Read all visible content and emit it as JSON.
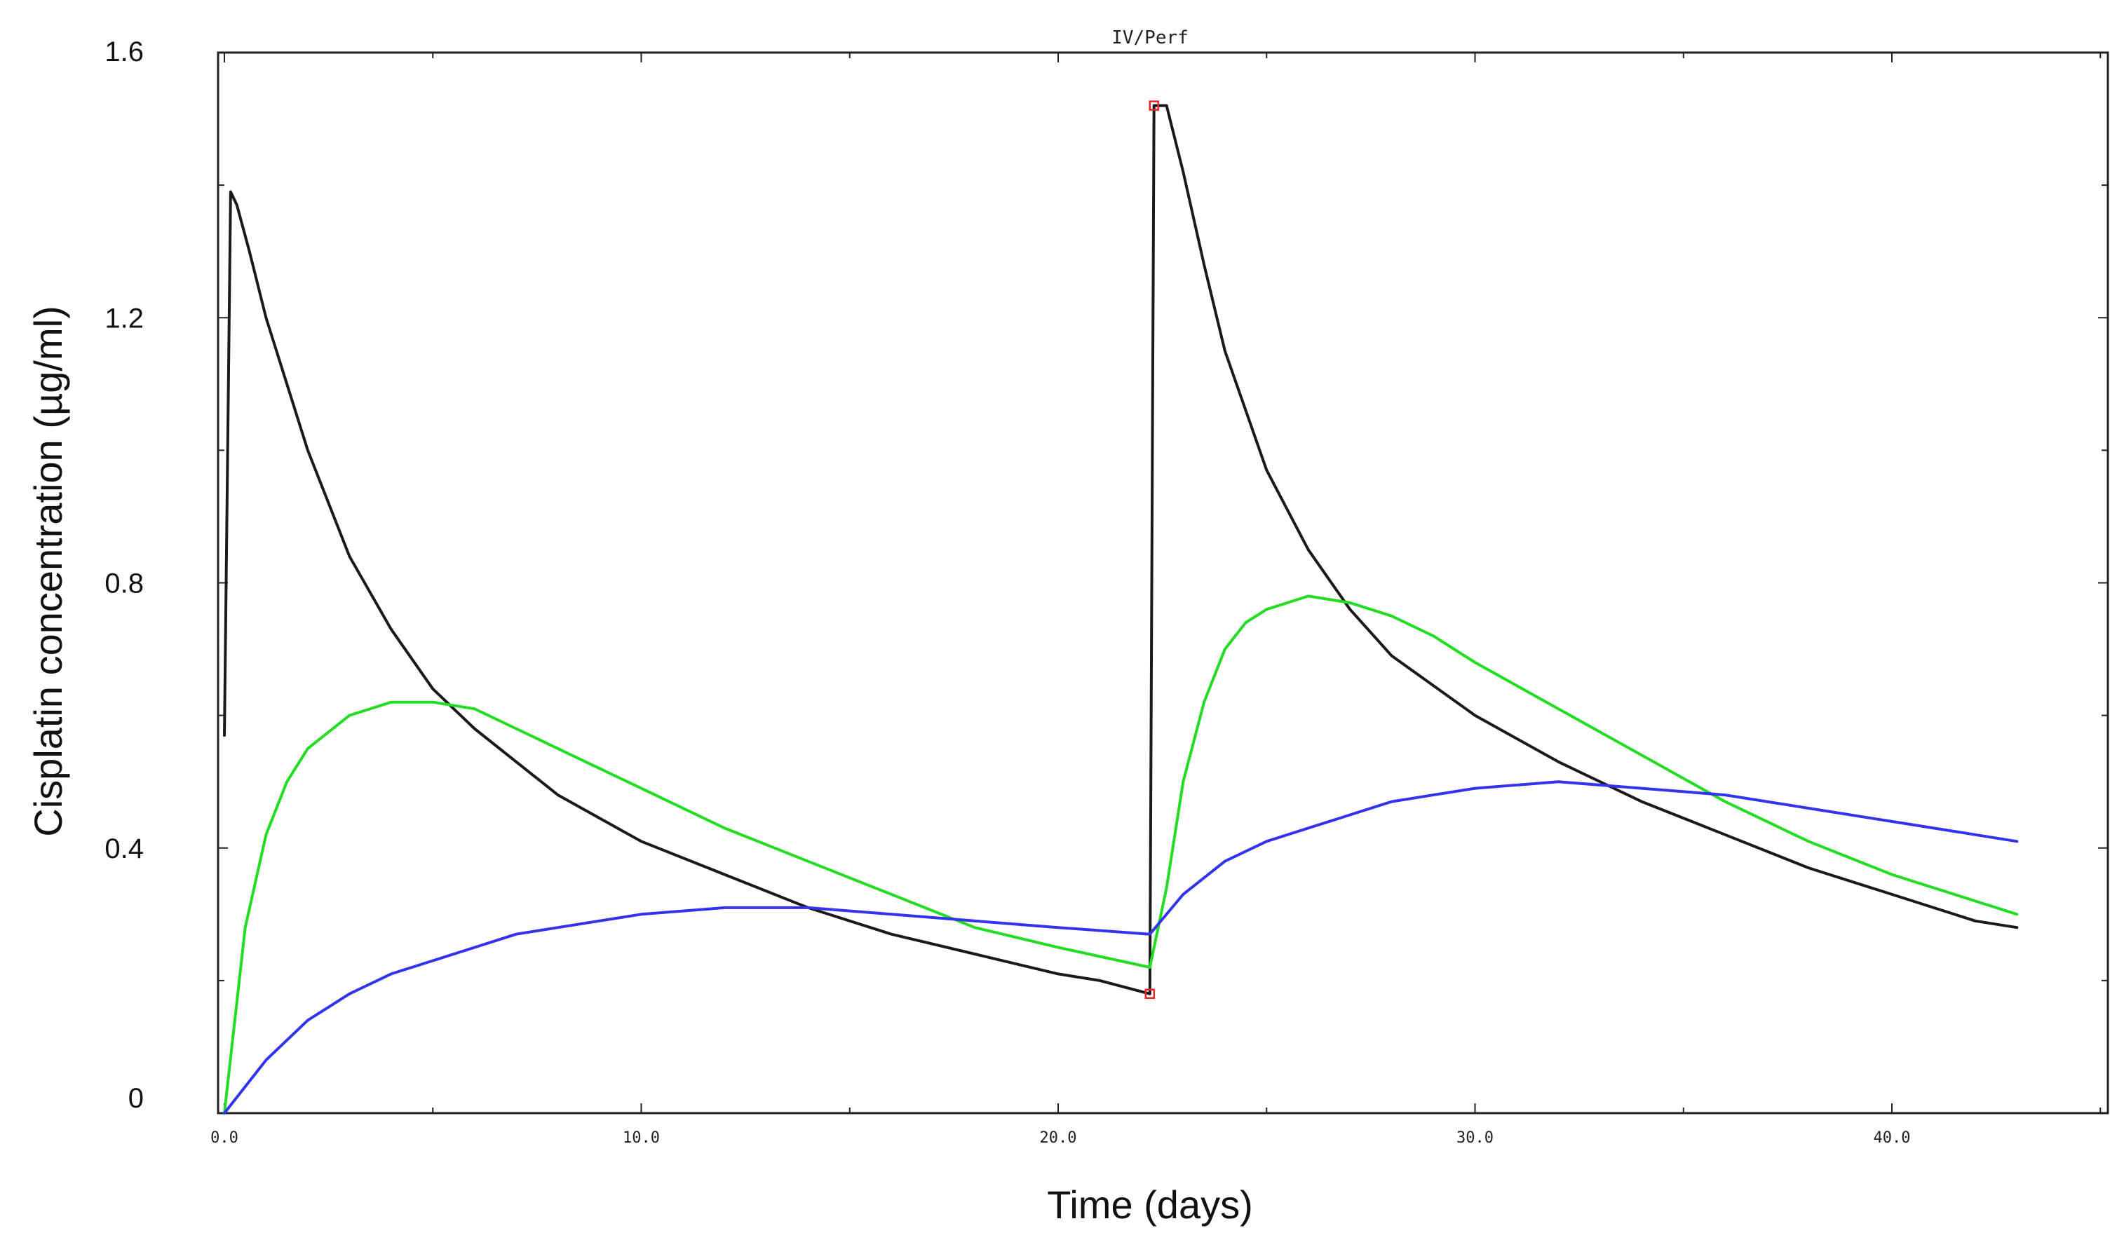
{
  "chart_data": {
    "type": "line",
    "title": "IV/Perf",
    "xlabel": "Time (days)",
    "ylabel": "Cisplatin concentration (µg/ml)",
    "xlim": [
      0,
      45
    ],
    "ylim": [
      0,
      1.6
    ],
    "x_ticks": [
      {
        "value": 0,
        "label": "0.0"
      },
      {
        "value": 10,
        "label": "10.0"
      },
      {
        "value": 20,
        "label": "20.0"
      },
      {
        "value": 30,
        "label": "30.0"
      },
      {
        "value": 40,
        "label": "40.0"
      }
    ],
    "y_ticks": [
      {
        "value": 0,
        "label": "0"
      },
      {
        "value": 0.4,
        "label": "0.4"
      },
      {
        "value": 0.8,
        "label": "0.8"
      },
      {
        "value": 1.2,
        "label": "1.2"
      },
      {
        "value": 1.6,
        "label": "1.6"
      }
    ],
    "grid": false,
    "series": [
      {
        "color": "#1a1a1a",
        "x": [
          0,
          0.15,
          0.3,
          0.6,
          1,
          2,
          3,
          4,
          5,
          6,
          8,
          10,
          12,
          14,
          16,
          18,
          20,
          21,
          22.2,
          22.3,
          22.6,
          23,
          23.5,
          24,
          25,
          26,
          27,
          28,
          30,
          32,
          34,
          36,
          38,
          40,
          42,
          43
        ],
        "y": [
          0.57,
          1.39,
          1.37,
          1.3,
          1.2,
          1.0,
          0.84,
          0.73,
          0.64,
          0.58,
          0.48,
          0.41,
          0.36,
          0.31,
          0.27,
          0.24,
          0.21,
          0.2,
          0.18,
          1.52,
          1.52,
          1.42,
          1.28,
          1.15,
          0.97,
          0.85,
          0.76,
          0.69,
          0.6,
          0.53,
          0.47,
          0.42,
          0.37,
          0.33,
          0.29,
          0.28
        ]
      },
      {
        "color": "#22dd22",
        "x": [
          0,
          0.5,
          1,
          1.5,
          2,
          3,
          4,
          5,
          6,
          7,
          8,
          10,
          12,
          14,
          16,
          18,
          20,
          22.2,
          22.6,
          23,
          23.5,
          24,
          24.5,
          25,
          25.5,
          26,
          27,
          28,
          29,
          30,
          32,
          34,
          36,
          38,
          40,
          42,
          43
        ],
        "y": [
          0,
          0.28,
          0.42,
          0.5,
          0.55,
          0.6,
          0.62,
          0.62,
          0.61,
          0.58,
          0.55,
          0.49,
          0.43,
          0.38,
          0.33,
          0.28,
          0.25,
          0.22,
          0.34,
          0.5,
          0.62,
          0.7,
          0.74,
          0.76,
          0.77,
          0.78,
          0.77,
          0.75,
          0.72,
          0.68,
          0.61,
          0.54,
          0.47,
          0.41,
          0.36,
          0.32,
          0.3
        ]
      },
      {
        "color": "#3333ee",
        "x": [
          0,
          1,
          2,
          3,
          4,
          5,
          6,
          7,
          8,
          10,
          12,
          14,
          16,
          18,
          20,
          22.2,
          23,
          24,
          25,
          26,
          27,
          28,
          30,
          32,
          34,
          36,
          38,
          40,
          42,
          43
        ],
        "y": [
          0,
          0.08,
          0.14,
          0.18,
          0.21,
          0.23,
          0.25,
          0.27,
          0.28,
          0.3,
          0.31,
          0.31,
          0.3,
          0.29,
          0.28,
          0.27,
          0.33,
          0.38,
          0.41,
          0.43,
          0.45,
          0.47,
          0.49,
          0.5,
          0.49,
          0.48,
          0.46,
          0.44,
          0.42,
          0.41
        ]
      }
    ],
    "markers": {
      "color": "#ee2222",
      "points": [
        {
          "x": 22.3,
          "y": 1.52
        },
        {
          "x": 22.2,
          "y": 0.18
        }
      ]
    }
  }
}
